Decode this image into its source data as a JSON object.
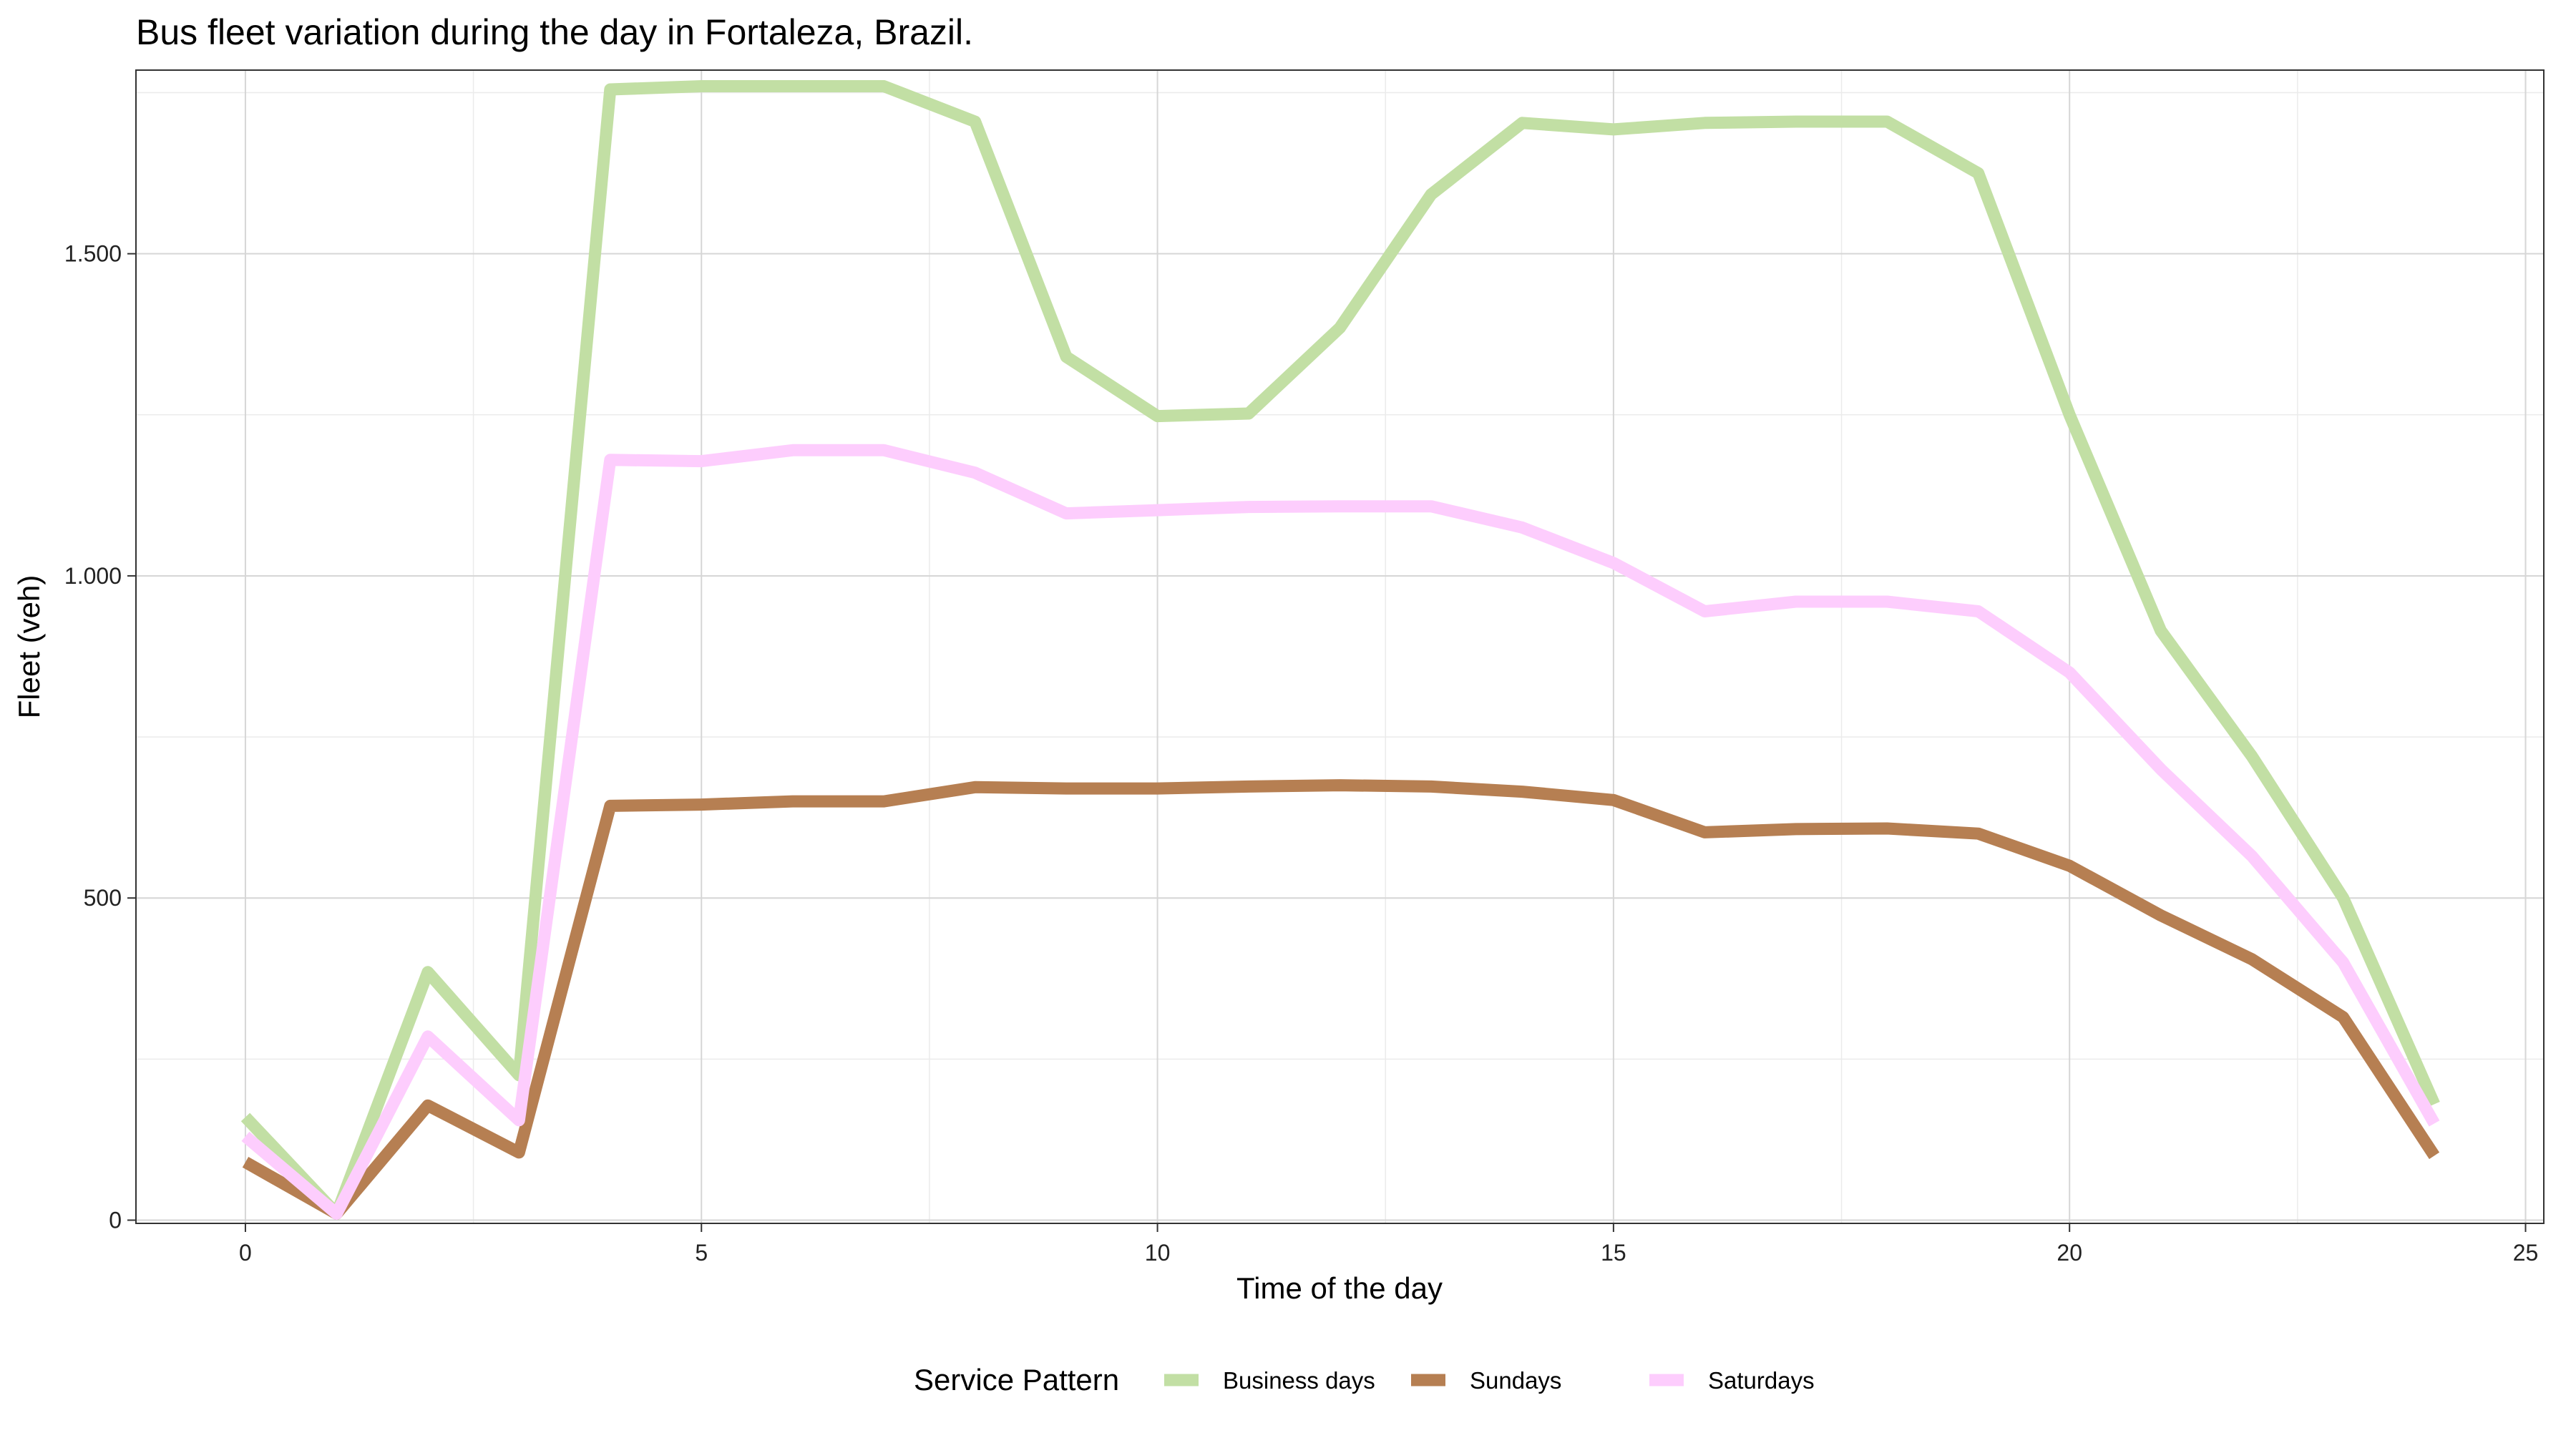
{
  "chart_data": {
    "type": "line",
    "title": "Bus fleet variation during the day in Fortaleza, Brazil.",
    "xlabel": "Time of the day",
    "ylabel": "Fleet (veh)",
    "xlim": [
      -1.2,
      25.2
    ],
    "ylim": [
      -5,
      1785
    ],
    "xticks": [
      0,
      5,
      10,
      15,
      20,
      25
    ],
    "xtick_labels": [
      "0",
      "5",
      "10",
      "15",
      "20",
      "25"
    ],
    "yticks": [
      0,
      500,
      1000,
      1500
    ],
    "ytick_labels": [
      "0",
      "500",
      "1.000",
      "1.500"
    ],
    "grid": true,
    "legend_title": "Service Pattern",
    "legend_position": "bottom",
    "x": [
      0,
      1,
      2,
      3,
      4,
      5,
      6,
      7,
      8,
      9,
      10,
      11,
      12,
      13,
      14,
      15,
      16,
      17,
      18,
      19,
      20,
      21,
      22,
      23,
      24
    ],
    "series": [
      {
        "name": "Business days",
        "color": "#c2dfa4",
        "values": [
          160,
          10,
          385,
          225,
          1755,
          1760,
          1760,
          1760,
          1705,
          1340,
          1248,
          1252,
          1385,
          1592,
          1703,
          1693,
          1703,
          1705,
          1705,
          1625,
          1250,
          915,
          720,
          500,
          180
        ]
      },
      {
        "name": "Sundays",
        "color": "#b67f52",
        "values": [
          90,
          10,
          178,
          105,
          643,
          645,
          650,
          650,
          672,
          670,
          670,
          673,
          675,
          673,
          665,
          652,
          602,
          607,
          608,
          600,
          550,
          473,
          405,
          315,
          100
        ]
      },
      {
        "name": "Saturdays",
        "color": "#fdcdfd",
        "values": [
          130,
          10,
          285,
          155,
          1180,
          1178,
          1195,
          1195,
          1160,
          1097,
          1102,
          1107,
          1108,
          1108,
          1075,
          1020,
          945,
          960,
          960,
          945,
          850,
          700,
          565,
          400,
          150
        ]
      }
    ]
  }
}
